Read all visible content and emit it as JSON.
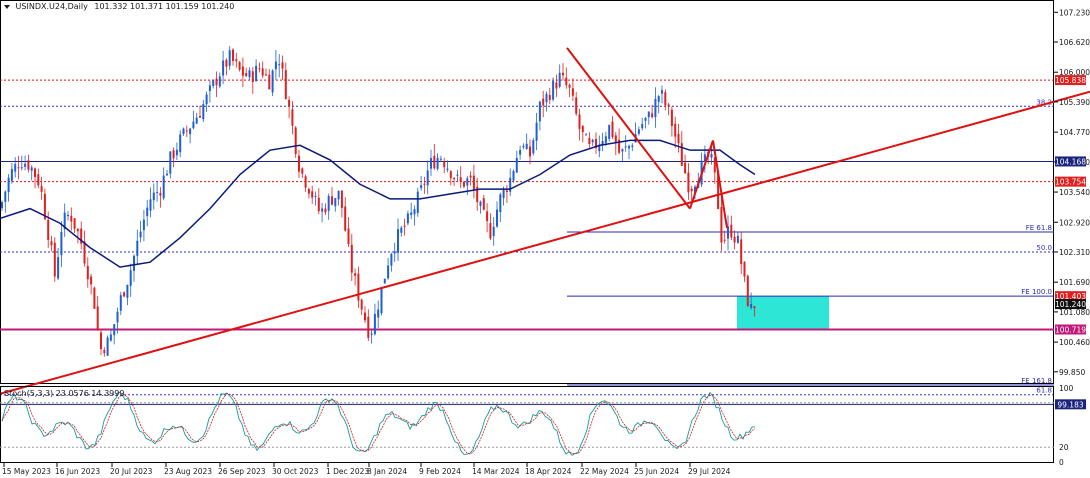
{
  "header": {
    "symbol": "USINDX.U24,Daily",
    "ohlc": "101.332 101.371 101.159 101.240"
  },
  "stoch": {
    "label": "Stoch(5,3,3) 23.0576 14.3999",
    "levels": [
      "100",
      "80",
      "20",
      "0"
    ]
  },
  "colors": {
    "bull": "#1f5fd6",
    "bear": "#e01f1f",
    "ma": "#0a1a7a",
    "trend": "#e01010",
    "fibo": "#2a2ab0",
    "box": "#2ee6d6",
    "hline_blue": "#1a237e",
    "hline_magenta": "#c2187a"
  },
  "chart_data": {
    "type": "candlestick",
    "ylim": [
      99.6,
      107.4
    ],
    "y_ticks": [
      "107.230",
      "106.620",
      "106.000",
      "105.390",
      "104.770",
      "104.160",
      "103.540",
      "102.920",
      "102.310",
      "101.690",
      "101.080",
      "100.460",
      "99.850"
    ],
    "x_ticks": [
      "15 May 2023",
      "16 Jun 2023",
      "20 Jul 2023",
      "23 Aug 2023",
      "26 Sep 2023",
      "30 Oct 2023",
      "1 Dec 2023",
      "8 Jan 2024",
      "9 Feb 2024",
      "14 Mar 2024",
      "18 Apr 2024",
      "22 May 2024",
      "25 Jun 2024",
      "29 Jul 2024"
    ],
    "close_path": [
      [
        0,
        103.2
      ],
      [
        10,
        103.9
      ],
      [
        20,
        104.2
      ],
      [
        30,
        104.1
      ],
      [
        40,
        103.7
      ],
      [
        50,
        102.5
      ],
      [
        55,
        101.8
      ],
      [
        62,
        102.9
      ],
      [
        70,
        103.1
      ],
      [
        80,
        102.6
      ],
      [
        88,
        101.9
      ],
      [
        95,
        101.2
      ],
      [
        100,
        100.3
      ],
      [
        110,
        100.5
      ],
      [
        120,
        101.3
      ],
      [
        130,
        101.9
      ],
      [
        140,
        102.7
      ],
      [
        150,
        103.4
      ],
      [
        160,
        103.6
      ],
      [
        170,
        104.2
      ],
      [
        180,
        104.6
      ],
      [
        190,
        104.9
      ],
      [
        200,
        105.2
      ],
      [
        210,
        105.6
      ],
      [
        220,
        106.0
      ],
      [
        230,
        106.3
      ],
      [
        240,
        106.0
      ],
      [
        250,
        105.9
      ],
      [
        260,
        106.1
      ],
      [
        270,
        105.8
      ],
      [
        278,
        106.4
      ],
      [
        286,
        105.6
      ],
      [
        293,
        104.8
      ],
      [
        300,
        104.0
      ],
      [
        310,
        103.6
      ],
      [
        320,
        103.1
      ],
      [
        330,
        103.4
      ],
      [
        340,
        103.5
      ],
      [
        350,
        102.1
      ],
      [
        360,
        101.3
      ],
      [
        370,
        100.6
      ],
      [
        380,
        101.4
      ],
      [
        390,
        102.3
      ],
      [
        400,
        102.7
      ],
      [
        410,
        103.0
      ],
      [
        420,
        103.5
      ],
      [
        430,
        104.1
      ],
      [
        440,
        104.3
      ],
      [
        450,
        104.0
      ],
      [
        460,
        103.7
      ],
      [
        470,
        103.8
      ],
      [
        480,
        103.2
      ],
      [
        490,
        102.7
      ],
      [
        500,
        103.4
      ],
      [
        510,
        103.8
      ],
      [
        520,
        104.5
      ],
      [
        530,
        104.3
      ],
      [
        540,
        105.3
      ],
      [
        550,
        105.6
      ],
      [
        560,
        105.9
      ],
      [
        570,
        105.6
      ],
      [
        580,
        104.8
      ],
      [
        590,
        104.4
      ],
      [
        600,
        104.6
      ],
      [
        610,
        104.9
      ],
      [
        620,
        104.3
      ],
      [
        630,
        104.5
      ],
      [
        640,
        104.9
      ],
      [
        650,
        105.1
      ],
      [
        660,
        105.6
      ],
      [
        670,
        105.1
      ],
      [
        680,
        104.3
      ],
      [
        690,
        103.6
      ],
      [
        700,
        104.0
      ],
      [
        710,
        104.3
      ],
      [
        716,
        103.7
      ],
      [
        722,
        102.5
      ],
      [
        730,
        102.8
      ],
      [
        738,
        102.5
      ],
      [
        745,
        101.6
      ],
      [
        750,
        101.1
      ],
      [
        755,
        101.24
      ]
    ],
    "ma_path": [
      [
        0,
        103.0
      ],
      [
        30,
        103.2
      ],
      [
        60,
        102.9
      ],
      [
        90,
        102.4
      ],
      [
        120,
        102.0
      ],
      [
        150,
        102.1
      ],
      [
        180,
        102.6
      ],
      [
        210,
        103.2
      ],
      [
        240,
        103.9
      ],
      [
        270,
        104.4
      ],
      [
        300,
        104.5
      ],
      [
        330,
        104.2
      ],
      [
        360,
        103.7
      ],
      [
        390,
        103.4
      ],
      [
        420,
        103.4
      ],
      [
        450,
        103.5
      ],
      [
        480,
        103.6
      ],
      [
        510,
        103.6
      ],
      [
        540,
        103.9
      ],
      [
        570,
        104.3
      ],
      [
        600,
        104.5
      ],
      [
        630,
        104.6
      ],
      [
        660,
        104.6
      ],
      [
        690,
        104.4
      ],
      [
        720,
        104.4
      ],
      [
        740,
        104.1
      ],
      [
        755,
        103.9
      ]
    ],
    "trendlines": [
      {
        "x1": 0,
        "y1": 99.4,
        "x2": 1090,
        "y2": 105.6
      },
      {
        "x1": 567,
        "y1": 106.5,
        "x2": 690,
        "y2": 103.2
      },
      {
        "x1": 690,
        "y1": 103.2,
        "x2": 713,
        "y2": 104.6
      },
      {
        "x1": 713,
        "y1": 104.6,
        "x2": 727,
        "y2": 102.8
      }
    ],
    "hlines": [
      {
        "price": 105.838,
        "label": "105.838",
        "color": "#e01010",
        "dash": true,
        "badge": "#e01f1f"
      },
      {
        "price": 105.3,
        "label": "38.2",
        "color": "#3030c0",
        "dash": true,
        "badge": null
      },
      {
        "price": 104.168,
        "label": "104.168",
        "color": "#1a237e",
        "dash": false,
        "badge": "#1a237e"
      },
      {
        "price": 103.754,
        "label": "103.754",
        "color": "#e01010",
        "dash": true,
        "badge": "#e01f1f"
      },
      {
        "price": 102.72,
        "label": "FE 61.8",
        "color": "#2a2ab0",
        "dash": false,
        "badge": null,
        "start": 567
      },
      {
        "price": 102.31,
        "label": "50.0",
        "color": "#3030c0",
        "dash": true,
        "badge": null
      },
      {
        "price": 101.403,
        "label": "FE 100.0",
        "color": "#2a2ab0",
        "dash": false,
        "badge": "#e01f1f",
        "badgeText": "101.403",
        "start": 567
      },
      {
        "price": 101.24,
        "label": "",
        "color": "#000000",
        "dash": false,
        "badge": "#111111",
        "badgeText": "101.240",
        "noline": true
      },
      {
        "price": 100.719,
        "label": "100.719",
        "color": "#c2187a",
        "dash": false,
        "badge": "#c2187a"
      },
      {
        "price": 99.58,
        "label": "FE 161.8",
        "color": "#2a2ab0",
        "dash": false,
        "badge": null,
        "start": 567
      },
      {
        "price": 99.38,
        "label": "61.8",
        "color": "#3030c0",
        "dash": true,
        "badge": null
      },
      {
        "price": 99.183,
        "label": "99.183",
        "color": "#1a237e",
        "dash": false,
        "badge": "#1a237e"
      }
    ],
    "box": {
      "x1": 737,
      "x2": 829,
      "y1": 101.403,
      "y2": 100.719
    }
  }
}
